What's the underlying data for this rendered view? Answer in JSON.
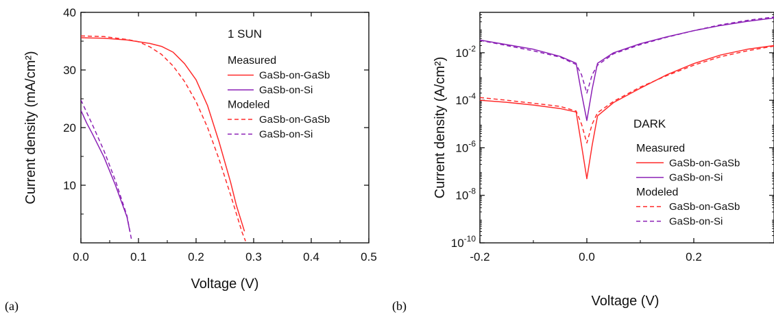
{
  "chart_data": [
    {
      "panel": "(a)",
      "type": "line",
      "annotation": "1 SUN",
      "xlabel": "Voltage (V)",
      "ylabel": "Current density (mA/cm²)",
      "xlim": [
        0.0,
        0.5
      ],
      "ylim": [
        0,
        40
      ],
      "yscale": "linear",
      "x_ticks": [
        0.0,
        0.1,
        0.2,
        0.3,
        0.4,
        0.5
      ],
      "x_tick_labels": [
        "0.0",
        "0.1",
        "0.2",
        "0.3",
        "0.4",
        "0.5"
      ],
      "y_ticks": [
        10,
        20,
        30,
        40
      ],
      "y_tick_labels": [
        "10",
        "20",
        "30",
        "40"
      ],
      "grid": false,
      "legend_placement": "right",
      "legend_groups": [
        {
          "title": "Measured",
          "entries": [
            "GaSb-on-GaSb",
            "GaSb-on-Si"
          ]
        },
        {
          "title": "Modeled",
          "entries": [
            "GaSb-on-GaSb",
            "GaSb-on-Si"
          ]
        }
      ],
      "series": [
        {
          "name": "GaSb-on-GaSb",
          "group": "Measured",
          "color": "#ff2a2a",
          "dash": "solid",
          "x": [
            0.0,
            0.04,
            0.08,
            0.12,
            0.14,
            0.16,
            0.18,
            0.2,
            0.22,
            0.24,
            0.26,
            0.27,
            0.284
          ],
          "y": [
            35.6,
            35.5,
            35.2,
            34.6,
            34.1,
            33.1,
            31.1,
            28.3,
            23.8,
            17.5,
            10.5,
            6.5,
            2.0
          ]
        },
        {
          "name": "GaSb-on-Si",
          "group": "Measured",
          "color": "#8a1fb5",
          "dash": "solid",
          "x": [
            0.0,
            0.01,
            0.02,
            0.04,
            0.06,
            0.08,
            0.085
          ],
          "y": [
            23.0,
            20.8,
            18.9,
            14.9,
            10.0,
            4.5,
            2.0
          ]
        },
        {
          "name": "GaSb-on-GaSb",
          "group": "Modeled",
          "color": "#ff2a2a",
          "dash": "dashed",
          "x": [
            0.0,
            0.04,
            0.08,
            0.1,
            0.12,
            0.14,
            0.16,
            0.18,
            0.2,
            0.22,
            0.24,
            0.26,
            0.28,
            0.286
          ],
          "y": [
            35.9,
            35.8,
            35.3,
            34.9,
            34.0,
            32.7,
            30.7,
            28.0,
            24.5,
            20.0,
            14.5,
            8.3,
            1.8,
            0.3
          ]
        },
        {
          "name": "GaSb-on-Si",
          "group": "Modeled",
          "color": "#8a1fb5",
          "dash": "dashed",
          "x": [
            0.0,
            0.02,
            0.04,
            0.06,
            0.08,
            0.088
          ],
          "y": [
            24.8,
            20.5,
            16.0,
            10.8,
            4.7,
            0.5
          ]
        }
      ]
    },
    {
      "panel": "(b)",
      "type": "line",
      "annotation": "DARK",
      "xlabel": "Voltage (V)",
      "ylabel": "Current density (A/cm²)",
      "xlim": [
        -0.2,
        0.35
      ],
      "ylim": [
        1e-10,
        0.5
      ],
      "yscale": "log",
      "x_ticks": [
        -0.2,
        0.0,
        0.2
      ],
      "x_tick_labels": [
        "-0.2",
        "0.0",
        "0.2"
      ],
      "y_ticks": [
        1e-10,
        1e-08,
        1e-06,
        0.0001,
        0.01
      ],
      "y_tick_labels": [
        {
          "base": "10",
          "exp": "-10"
        },
        {
          "base": "10",
          "exp": "-8"
        },
        {
          "base": "10",
          "exp": "-6"
        },
        {
          "base": "10",
          "exp": "-4"
        },
        {
          "base": "10",
          "exp": "-2"
        }
      ],
      "grid": false,
      "legend_placement": "bottom-right",
      "legend_groups": [
        {
          "title": "Measured",
          "entries": [
            "GaSb-on-GaSb",
            "GaSb-on-Si"
          ]
        },
        {
          "title": "Modeled",
          "entries": [
            "GaSb-on-GaSb",
            "GaSb-on-Si"
          ]
        }
      ],
      "series": [
        {
          "name": "GaSb-on-GaSb",
          "group": "Measured",
          "color": "#ff2a2a",
          "dash": "solid",
          "x": [
            -0.2,
            -0.15,
            -0.1,
            -0.05,
            -0.02,
            -0.01,
            0.0,
            0.01,
            0.02,
            0.05,
            0.1,
            0.15,
            0.2,
            0.25,
            0.3,
            0.35
          ],
          "y": [
            0.0001,
            8.2e-05,
            6.3e-05,
            4.5e-05,
            3.2e-05,
            1.3e-06,
            5e-08,
            1.3e-06,
            2.2e-05,
            8e-05,
            0.00032,
            0.0012,
            0.0035,
            0.008,
            0.014,
            0.02
          ]
        },
        {
          "name": "GaSb-on-Si",
          "group": "Measured",
          "color": "#8a1fb5",
          "dash": "solid",
          "x": [
            -0.2,
            -0.15,
            -0.1,
            -0.05,
            -0.02,
            -0.01,
            0.0,
            0.01,
            0.02,
            0.05,
            0.1,
            0.15,
            0.2,
            0.25,
            0.3,
            0.35
          ],
          "y": [
            0.034,
            0.022,
            0.014,
            0.007,
            0.0036,
            0.0002,
            1.4e-05,
            0.0003,
            0.0036,
            0.01,
            0.024,
            0.047,
            0.085,
            0.14,
            0.21,
            0.29
          ]
        },
        {
          "name": "GaSb-on-GaSb",
          "group": "Modeled",
          "color": "#ff2a2a",
          "dash": "dashed",
          "x": [
            -0.2,
            -0.15,
            -0.1,
            -0.05,
            -0.02,
            -0.01,
            0.0,
            0.01,
            0.02,
            0.05,
            0.1,
            0.15,
            0.2,
            0.25,
            0.3,
            0.35
          ],
          "y": [
            0.00013,
            0.0001,
            7.5e-05,
            5.5e-05,
            3.5e-05,
            1e-05,
            1.6e-06,
            1e-05,
            3e-05,
            9e-05,
            0.00036,
            0.0011,
            0.003,
            0.0068,
            0.012,
            0.019
          ]
        },
        {
          "name": "GaSb-on-Si",
          "group": "Modeled",
          "color": "#8a1fb5",
          "dash": "dashed",
          "x": [
            -0.2,
            -0.15,
            -0.1,
            -0.05,
            -0.02,
            -0.01,
            0.0,
            0.01,
            0.02,
            0.05,
            0.1,
            0.15,
            0.2,
            0.25,
            0.3,
            0.35
          ],
          "y": [
            0.033,
            0.02,
            0.012,
            0.0065,
            0.0032,
            0.0012,
            0.0002,
            0.0012,
            0.003,
            0.009,
            0.022,
            0.045,
            0.085,
            0.15,
            0.23,
            0.32
          ]
        }
      ]
    }
  ]
}
